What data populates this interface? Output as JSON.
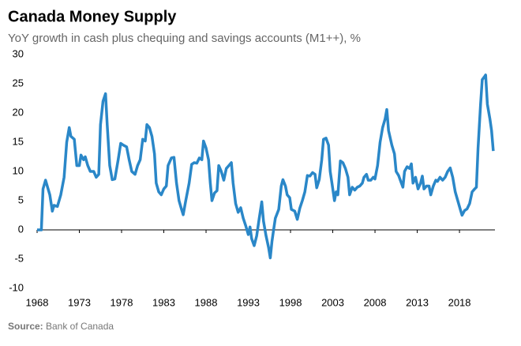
{
  "chart_data": {
    "type": "line",
    "title": "Canada  Money Supply",
    "subtitle": "YoY growth in cash plus chequing and savings accounts (M1++), %",
    "source_label": "Source:",
    "source": "Bank of Canada",
    "xlim": [
      1968,
      2022.2
    ],
    "xticks": [
      1968,
      1973,
      1978,
      1983,
      1988,
      1993,
      1998,
      2003,
      2008,
      2013,
      2018
    ],
    "ylim": [
      -10,
      30
    ],
    "yticks": [
      -10,
      -5,
      0,
      5,
      10,
      15,
      20,
      25,
      30
    ],
    "grid": false,
    "series": [
      {
        "name": "M1++",
        "color": "#2a87c8",
        "x": [
          1968.0,
          1968.5,
          1968.7,
          1969.0,
          1969.5,
          1969.8,
          1970.0,
          1970.4,
          1970.8,
          1971.2,
          1971.5,
          1971.8,
          1972.0,
          1972.4,
          1972.7,
          1973.0,
          1973.2,
          1973.5,
          1973.7,
          1974.0,
          1974.3,
          1974.7,
          1975.0,
          1975.3,
          1975.5,
          1975.8,
          1976.1,
          1976.3,
          1976.6,
          1976.9,
          1977.2,
          1977.6,
          1977.9,
          1978.2,
          1978.6,
          1978.9,
          1979.2,
          1979.6,
          1979.9,
          1980.2,
          1980.5,
          1980.8,
          1981.0,
          1981.3,
          1981.6,
          1981.9,
          1982.1,
          1982.4,
          1982.7,
          1983.0,
          1983.3,
          1983.5,
          1983.9,
          1984.2,
          1984.5,
          1984.8,
          1985.1,
          1985.3,
          1985.6,
          1986.0,
          1986.3,
          1986.6,
          1986.9,
          1987.2,
          1987.5,
          1987.7,
          1988.0,
          1988.3,
          1988.5,
          1988.7,
          1989.0,
          1989.3,
          1989.5,
          1989.8,
          1990.1,
          1990.4,
          1990.7,
          1991.0,
          1991.2,
          1991.5,
          1991.8,
          1992.1,
          1992.4,
          1992.7,
          1993.0,
          1993.2,
          1993.4,
          1993.7,
          1994.0,
          1994.3,
          1994.6,
          1994.8,
          1995.1,
          1995.4,
          1995.6,
          1995.8,
          1996.0,
          1996.2,
          1996.6,
          1996.9,
          1997.1,
          1997.4,
          1997.6,
          1997.9,
          1998.1,
          1998.5,
          1998.8,
          1999.1,
          1999.4,
          1999.7,
          2000.0,
          2000.3,
          2000.6,
          2000.9,
          2001.1,
          2001.4,
          2001.7,
          2001.9,
          2002.2,
          2002.5,
          2002.7,
          2002.9,
          2003.2,
          2003.4,
          2003.6,
          2003.9,
          2004.2,
          2004.5,
          2004.8,
          2005.0,
          2005.3,
          2005.6,
          2005.9,
          2006.2,
          2006.5,
          2006.7,
          2007.0,
          2007.2,
          2007.5,
          2007.8,
          2008.0,
          2008.3,
          2008.6,
          2008.9,
          2009.2,
          2009.4,
          2009.6,
          2010.0,
          2010.3,
          2010.5,
          2010.8,
          2011.0,
          2011.3,
          2011.5,
          2011.8,
          2012.1,
          2012.3,
          2012.5,
          2012.8,
          2013.1,
          2013.4,
          2013.6,
          2013.8,
          2014.1,
          2014.4,
          2014.6,
          2014.9,
          2015.2,
          2015.4,
          2015.7,
          2016.0,
          2016.3,
          2016.6,
          2016.9,
          2017.2,
          2017.5,
          2017.8,
          2018.1,
          2018.3,
          2018.6,
          2018.9,
          2019.2,
          2019.5,
          2019.8,
          2020.0,
          2020.2,
          2020.5,
          2020.7,
          2021.0,
          2021.1,
          2021.3,
          2021.6,
          2021.8,
          2022.0
        ],
        "values": [
          0,
          0,
          7,
          8.5,
          6,
          3.2,
          4.2,
          4,
          6,
          9,
          15,
          17.5,
          16,
          15.5,
          11,
          11,
          12.8,
          12,
          12.5,
          11,
          10,
          10,
          9,
          9.5,
          18,
          22,
          23.3,
          18,
          11,
          8.6,
          8.7,
          12,
          14.8,
          14.5,
          14.2,
          12,
          10,
          9.5,
          11,
          12,
          15.5,
          15.2,
          18,
          17.5,
          16,
          13,
          8,
          6.5,
          6,
          7,
          7.5,
          11,
          12.3,
          12.4,
          8,
          5,
          3.5,
          2.6,
          5,
          8,
          11.2,
          11.5,
          11.4,
          12.3,
          12,
          15.2,
          14,
          12,
          8,
          5,
          6.3,
          6.7,
          11,
          10,
          8.5,
          10.5,
          11,
          11.5,
          8,
          4.5,
          3,
          3.8,
          2,
          0.7,
          -0.8,
          0.5,
          -1.5,
          -2.7,
          -1,
          2,
          4.8,
          1.5,
          -1,
          -3,
          -4.8,
          -2,
          0,
          2,
          3.5,
          7.5,
          8.6,
          7.5,
          6,
          5.5,
          3.5,
          3.2,
          1.8,
          3.7,
          5,
          6.5,
          9.3,
          9.2,
          9.8,
          9.5,
          7.2,
          8.6,
          12,
          15.5,
          15.7,
          14.5,
          10,
          8,
          5,
          6.5,
          6,
          11.8,
          11.5,
          10.5,
          9,
          6,
          7.3,
          6.8,
          7.3,
          7.5,
          8,
          9,
          9.5,
          8.5,
          8.5,
          9,
          8.7,
          11,
          15,
          17.5,
          19,
          20.6,
          17,
          14.5,
          13,
          10,
          9.3,
          8.5,
          7.3,
          10,
          10.8,
          10.5,
          11.3,
          8,
          9,
          7,
          8,
          9.2,
          7,
          7.5,
          7.5,
          6,
          7.5,
          8.5,
          8.3,
          9,
          8.5,
          9,
          10,
          10.6,
          9,
          6.5,
          5,
          3.5,
          2.5,
          3.3,
          3.6,
          4.5,
          6.5,
          7,
          7.3,
          14,
          21.5,
          25.7,
          26.3,
          26.5,
          21.5,
          19,
          17,
          13.5
        ]
      }
    ]
  }
}
